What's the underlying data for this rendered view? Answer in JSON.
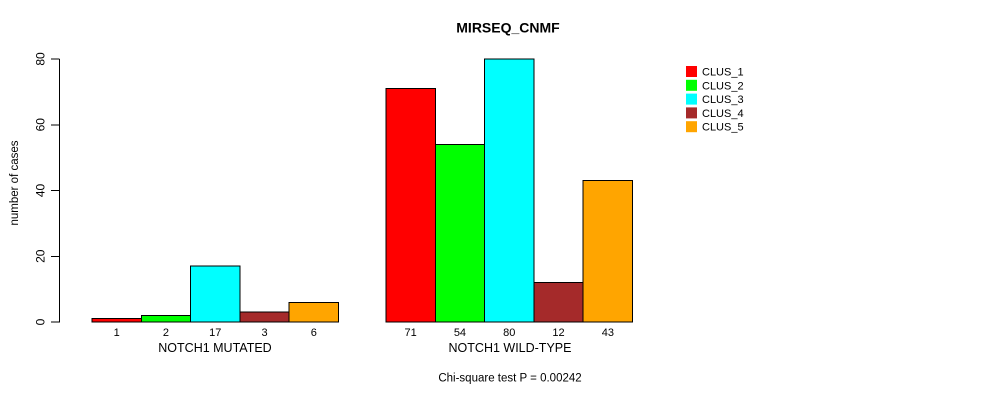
{
  "chart_data": {
    "type": "bar",
    "title": "MIRSEQ_CNMF",
    "ylabel": "number of cases",
    "footnote": "Chi-square test P = 0.00242",
    "ylim": [
      0,
      80
    ],
    "yticks": [
      0,
      20,
      40,
      60,
      80
    ],
    "grid": false,
    "legend_position": "right",
    "bar_border_color": "#000000",
    "series": [
      {
        "name": "CLUS_1",
        "color": "#FF0000"
      },
      {
        "name": "CLUS_2",
        "color": "#00FF00"
      },
      {
        "name": "CLUS_3",
        "color": "#00FFFF"
      },
      {
        "name": "CLUS_4",
        "color": "#A52A2A"
      },
      {
        "name": "CLUS_5",
        "color": "#FFA500"
      }
    ],
    "groups": [
      {
        "label": "NOTCH1 MUTATED",
        "values": [
          1,
          2,
          17,
          3,
          6
        ]
      },
      {
        "label": "NOTCH1 WILD-TYPE",
        "values": [
          71,
          54,
          80,
          12,
          43
        ]
      }
    ]
  }
}
